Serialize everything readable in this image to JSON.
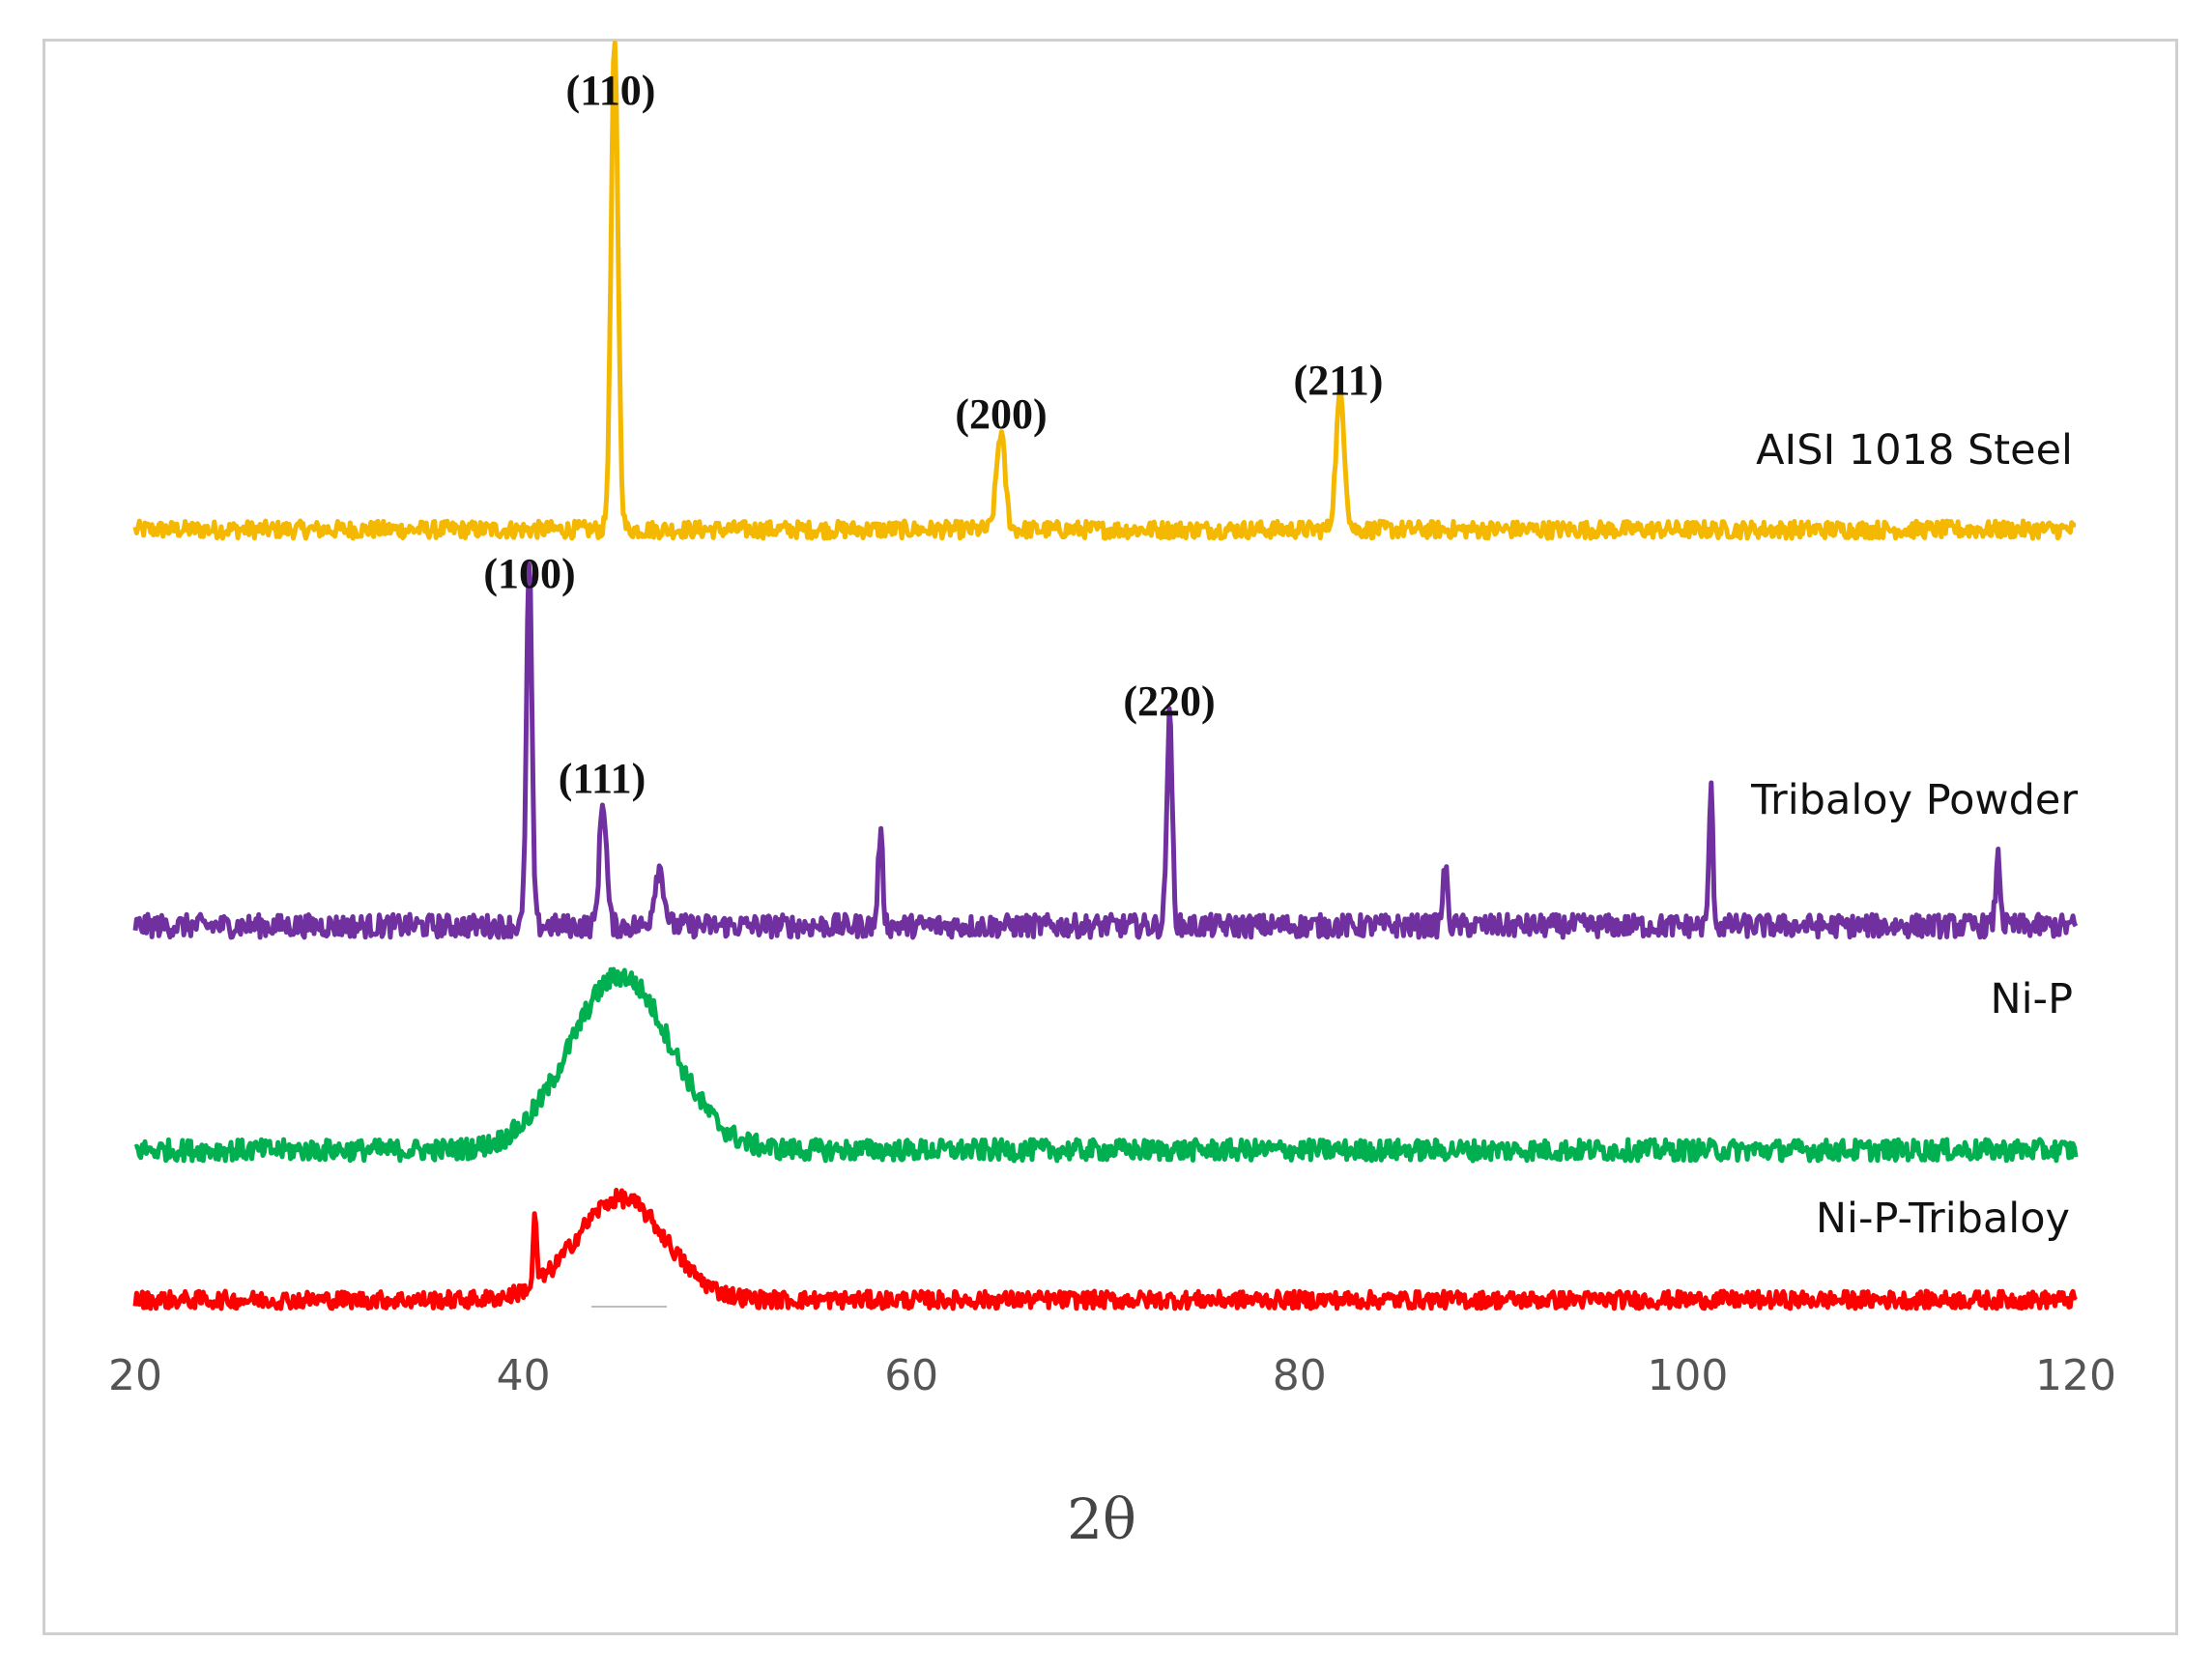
{
  "chart_data": {
    "type": "line",
    "title": "",
    "xlabel": "2θ",
    "ylabel": "",
    "xlim": [
      20,
      120
    ],
    "x_ticks": [
      "20",
      "40",
      "60",
      "80",
      "100",
      "120"
    ],
    "x_tick_values": [
      20,
      40,
      60,
      80,
      100,
      120
    ],
    "grid": false,
    "legend": "inline-right",
    "series": [
      {
        "name": "AISI 1018 Steel",
        "color": "#F5B800",
        "noise": 9,
        "peaks": [
          {
            "x": 44.7,
            "height": 100,
            "width": 0.18,
            "label": "(110)"
          },
          {
            "x": 64.6,
            "height": 20,
            "width": 0.22,
            "label": "(200)"
          },
          {
            "x": 82.1,
            "height": 28,
            "width": 0.22,
            "label": "(211)"
          }
        ]
      },
      {
        "name": "Tribaloy Powder",
        "color": "#7030A0",
        "noise": 12,
        "peaks": [
          {
            "x": 40.3,
            "height": 75,
            "width": 0.14,
            "label": "(100)"
          },
          {
            "x": 44.1,
            "height": 26,
            "width": 0.18,
            "label": "(111)"
          },
          {
            "x": 47.0,
            "height": 12,
            "width": 0.25,
            "label": ""
          },
          {
            "x": 58.4,
            "height": 19,
            "width": 0.12,
            "label": ""
          },
          {
            "x": 73.3,
            "height": 43,
            "width": 0.14,
            "label": "(220)"
          },
          {
            "x": 87.5,
            "height": 12,
            "width": 0.12,
            "label": ""
          },
          {
            "x": 101.2,
            "height": 28,
            "width": 0.1,
            "label": ""
          },
          {
            "x": 116.0,
            "height": 14,
            "width": 0.12,
            "label": ""
          }
        ]
      },
      {
        "name": "Ni-P",
        "color": "#00B050",
        "noise": 11,
        "peaks": [
          {
            "x": 45.0,
            "height": 36,
            "width": 2.6,
            "label": ""
          }
        ]
      },
      {
        "name": "Ni-P-Tribaloy",
        "color": "#FF0000",
        "noise": 9,
        "peaks": [
          {
            "x": 45.0,
            "height": 21,
            "width": 2.3,
            "label": ""
          },
          {
            "x": 40.6,
            "height": 15,
            "width": 0.08,
            "label": ""
          }
        ]
      }
    ]
  }
}
